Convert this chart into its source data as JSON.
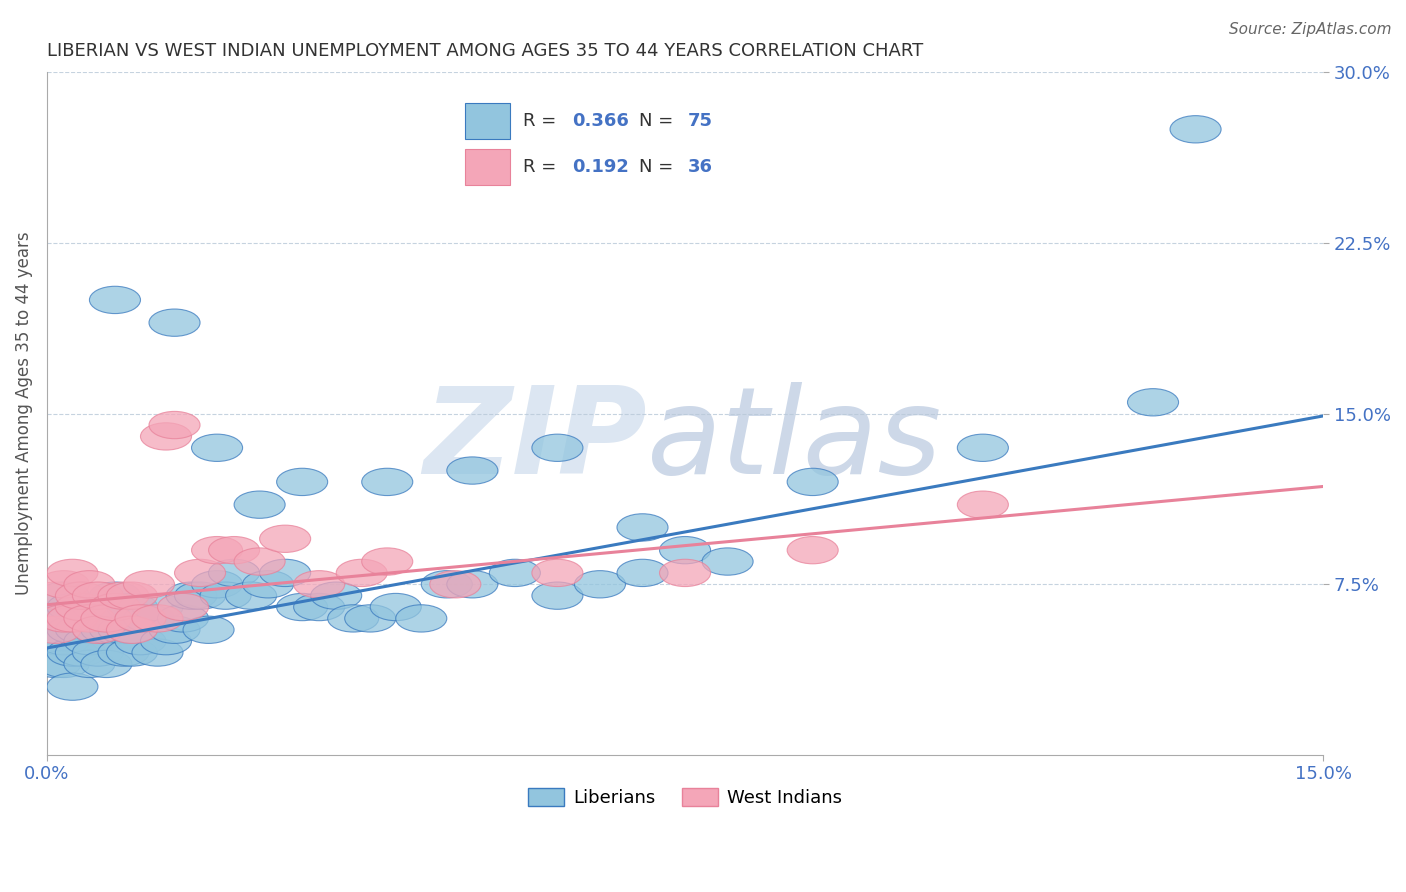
{
  "title": "LIBERIAN VS WEST INDIAN UNEMPLOYMENT AMONG AGES 35 TO 44 YEARS CORRELATION CHART",
  "source": "Source: ZipAtlas.com",
  "ylabel": "Unemployment Among Ages 35 to 44 years",
  "xlim": [
    0.0,
    0.15
  ],
  "ylim": [
    0.0,
    0.3
  ],
  "R_liberian": 0.366,
  "N_liberian": 75,
  "R_west_indian": 0.192,
  "N_west_indian": 36,
  "liberian_color": "#92c5de",
  "west_indian_color": "#f4a6b8",
  "liberian_line_color": "#3a7abf",
  "west_indian_line_color": "#e8829a",
  "background_color": "#ffffff",
  "watermark": "ZIPatlas",
  "watermark_color": "#dce6f0",
  "reg_lib": [
    0.047,
    0.149
  ],
  "reg_wi": [
    0.066,
    0.118
  ],
  "liberian_x": [
    0.001,
    0.001,
    0.001,
    0.002,
    0.002,
    0.002,
    0.002,
    0.003,
    0.003,
    0.003,
    0.003,
    0.004,
    0.004,
    0.004,
    0.005,
    0.005,
    0.005,
    0.006,
    0.006,
    0.006,
    0.007,
    0.007,
    0.007,
    0.008,
    0.008,
    0.009,
    0.009,
    0.01,
    0.01,
    0.01,
    0.011,
    0.011,
    0.012,
    0.013,
    0.013,
    0.014,
    0.015,
    0.016,
    0.017,
    0.018,
    0.019,
    0.02,
    0.021,
    0.022,
    0.024,
    0.026,
    0.028,
    0.03,
    0.032,
    0.034,
    0.036,
    0.038,
    0.041,
    0.044,
    0.047,
    0.05,
    0.055,
    0.06,
    0.065,
    0.07,
    0.075,
    0.08,
    0.008,
    0.015,
    0.02,
    0.025,
    0.03,
    0.04,
    0.05,
    0.06,
    0.07,
    0.09,
    0.11,
    0.13,
    0.135
  ],
  "liberian_y": [
    0.04,
    0.05,
    0.06,
    0.04,
    0.05,
    0.06,
    0.07,
    0.045,
    0.055,
    0.065,
    0.03,
    0.045,
    0.055,
    0.065,
    0.06,
    0.04,
    0.05,
    0.055,
    0.045,
    0.065,
    0.04,
    0.055,
    0.065,
    0.055,
    0.07,
    0.045,
    0.055,
    0.045,
    0.055,
    0.065,
    0.05,
    0.06,
    0.06,
    0.045,
    0.065,
    0.05,
    0.055,
    0.06,
    0.07,
    0.07,
    0.055,
    0.075,
    0.07,
    0.08,
    0.07,
    0.075,
    0.08,
    0.065,
    0.065,
    0.07,
    0.06,
    0.06,
    0.065,
    0.06,
    0.075,
    0.075,
    0.08,
    0.07,
    0.075,
    0.08,
    0.09,
    0.085,
    0.2,
    0.19,
    0.135,
    0.11,
    0.12,
    0.12,
    0.125,
    0.135,
    0.1,
    0.12,
    0.135,
    0.155,
    0.275
  ],
  "west_indian_x": [
    0.001,
    0.001,
    0.002,
    0.002,
    0.003,
    0.003,
    0.004,
    0.004,
    0.005,
    0.005,
    0.006,
    0.006,
    0.007,
    0.008,
    0.009,
    0.01,
    0.01,
    0.011,
    0.012,
    0.013,
    0.014,
    0.015,
    0.016,
    0.018,
    0.02,
    0.022,
    0.025,
    0.028,
    0.032,
    0.037,
    0.04,
    0.048,
    0.06,
    0.075,
    0.09,
    0.11
  ],
  "west_indian_y": [
    0.055,
    0.07,
    0.06,
    0.075,
    0.06,
    0.08,
    0.065,
    0.07,
    0.06,
    0.075,
    0.055,
    0.07,
    0.06,
    0.065,
    0.07,
    0.055,
    0.07,
    0.06,
    0.075,
    0.06,
    0.14,
    0.145,
    0.065,
    0.08,
    0.09,
    0.09,
    0.085,
    0.095,
    0.075,
    0.08,
    0.085,
    0.075,
    0.08,
    0.08,
    0.09,
    0.11
  ]
}
